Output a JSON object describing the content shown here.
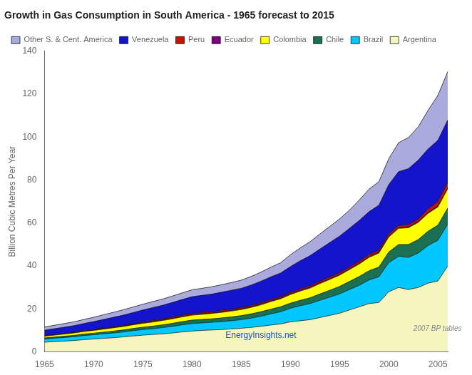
{
  "chart_data": {
    "type": "area",
    "stacked": true,
    "title": "Growth in Gas Consumption in South America - 1965 forecast to 2015",
    "ylabel": "Billion Cubic Metres Per Year",
    "x": [
      1965,
      1966,
      1967,
      1968,
      1969,
      1970,
      1971,
      1972,
      1973,
      1974,
      1975,
      1976,
      1977,
      1978,
      1979,
      1980,
      1981,
      1982,
      1983,
      1984,
      1985,
      1986,
      1987,
      1988,
      1989,
      1990,
      1991,
      1992,
      1993,
      1994,
      1995,
      1996,
      1997,
      1998,
      1999,
      2000,
      2001,
      2002,
      2003,
      2004,
      2005,
      2006
    ],
    "xlim": [
      1965,
      2006
    ],
    "xticks": [
      1965,
      1970,
      1975,
      1980,
      1985,
      1990,
      1995,
      2000,
      2005
    ],
    "ylim": [
      0,
      140
    ],
    "yticks": [
      0,
      20,
      40,
      60,
      80,
      100,
      120,
      140
    ],
    "grid": false,
    "legend": "upper left",
    "series": [
      {
        "name": "Argentina",
        "color": "#F5F5C0",
        "values": [
          4.5,
          4.8,
          5.0,
          5.3,
          5.7,
          6.0,
          6.3,
          6.6,
          7.0,
          7.4,
          7.8,
          8.1,
          8.4,
          8.8,
          9.3,
          9.7,
          10.0,
          10.2,
          10.4,
          10.7,
          11.0,
          11.4,
          11.9,
          12.5,
          13.0,
          14.0,
          14.5,
          15.0,
          16.0,
          17.0,
          18.0,
          19.5,
          21.0,
          22.5,
          23.0,
          28.0,
          30.0,
          29.0,
          30.0,
          32.0,
          33.0,
          40.0
        ]
      },
      {
        "name": "Brazil",
        "color": "#00C8FF",
        "values": [
          1.5,
          1.6,
          1.7,
          1.8,
          1.9,
          2.0,
          2.1,
          2.2,
          2.3,
          2.5,
          2.6,
          2.7,
          2.9,
          3.1,
          3.3,
          3.5,
          3.5,
          3.6,
          3.7,
          3.8,
          4.0,
          4.3,
          4.7,
          5.2,
          5.7,
          6.3,
          7.0,
          7.5,
          8.0,
          8.5,
          9.0,
          9.5,
          10.0,
          11.0,
          12.0,
          13.5,
          14.5,
          15.0,
          16.0,
          17.5,
          19.0,
          19.5
        ]
      },
      {
        "name": "Chile",
        "color": "#1A7050",
        "values": [
          0.5,
          0.5,
          0.6,
          0.6,
          0.7,
          0.7,
          0.8,
          0.9,
          0.9,
          1.0,
          1.1,
          1.2,
          1.3,
          1.4,
          1.5,
          1.6,
          1.6,
          1.6,
          1.7,
          1.8,
          1.9,
          2.0,
          2.1,
          2.2,
          2.3,
          2.4,
          2.5,
          2.7,
          3.0,
          3.2,
          3.5,
          3.8,
          4.1,
          4.3,
          4.5,
          5.0,
          5.5,
          6.0,
          6.3,
          6.7,
          7.0,
          7.5
        ]
      },
      {
        "name": "Colombia",
        "color": "#FFFF00",
        "values": [
          0.8,
          0.9,
          1.0,
          1.1,
          1.2,
          1.3,
          1.4,
          1.5,
          1.6,
          1.7,
          1.8,
          1.9,
          2.0,
          2.1,
          2.2,
          2.3,
          2.4,
          2.5,
          2.6,
          2.7,
          2.8,
          3.0,
          3.2,
          3.5,
          3.7,
          4.0,
          4.3,
          4.5,
          4.8,
          5.0,
          5.2,
          5.5,
          5.8,
          6.2,
          6.5,
          7.0,
          7.5,
          7.8,
          8.0,
          8.3,
          8.5,
          9.0
        ]
      },
      {
        "name": "Ecuador",
        "color": "#7B0080",
        "values": [
          0.1,
          0.1,
          0.1,
          0.1,
          0.1,
          0.1,
          0.2,
          0.2,
          0.2,
          0.2,
          0.2,
          0.3,
          0.3,
          0.3,
          0.3,
          0.3,
          0.3,
          0.3,
          0.4,
          0.4,
          0.4,
          0.4,
          0.5,
          0.5,
          0.5,
          0.5,
          0.5,
          0.5,
          0.5,
          0.5,
          0.5,
          0.5,
          0.5,
          0.5,
          0.5,
          0.5,
          0.5,
          0.5,
          0.5,
          0.5,
          0.5,
          0.5
        ]
      },
      {
        "name": "Peru",
        "color": "#CC1100",
        "values": [
          0.2,
          0.2,
          0.2,
          0.2,
          0.2,
          0.3,
          0.3,
          0.3,
          0.3,
          0.3,
          0.4,
          0.4,
          0.4,
          0.5,
          0.5,
          0.5,
          0.5,
          0.5,
          0.5,
          0.5,
          0.5,
          0.5,
          0.5,
          0.5,
          0.5,
          0.5,
          0.6,
          0.6,
          0.6,
          0.7,
          0.7,
          0.7,
          0.8,
          0.8,
          0.8,
          0.9,
          0.9,
          1.0,
          1.0,
          1.5,
          2.0,
          2.5
        ]
      },
      {
        "name": "Venezuela",
        "color": "#1414CC",
        "values": [
          2.5,
          2.7,
          2.9,
          3.1,
          3.4,
          3.7,
          4.0,
          4.4,
          4.8,
          5.2,
          5.6,
          6.0,
          6.4,
          6.8,
          7.3,
          7.8,
          8.0,
          8.2,
          8.5,
          8.8,
          9.0,
          9.5,
          10.0,
          10.5,
          11.0,
          12.0,
          13.0,
          14.0,
          15.0,
          16.0,
          17.0,
          18.0,
          19.0,
          20.0,
          21.0,
          23.0,
          25.0,
          26.0,
          27.5,
          28.0,
          28.5,
          29.0
        ]
      },
      {
        "name": "Other S. & Cent. America",
        "color": "#AAAADD",
        "values": [
          1.5,
          1.6,
          1.7,
          1.8,
          1.9,
          2.0,
          2.2,
          2.3,
          2.5,
          2.6,
          2.7,
          2.8,
          2.9,
          3.0,
          3.1,
          3.2,
          3.3,
          3.4,
          3.5,
          3.6,
          3.8,
          4.0,
          4.2,
          4.5,
          4.8,
          5.5,
          6.0,
          6.5,
          7.0,
          7.5,
          8.0,
          8.5,
          9.5,
          10.5,
          11.0,
          12.0,
          13.5,
          14.5,
          15.5,
          18.0,
          21.0,
          22.5
        ]
      }
    ],
    "annotations": [
      {
        "text": "EnergyInsights.net",
        "x": 1987,
        "y": 5.5,
        "color": "#2255AA"
      },
      {
        "text": "2007 BP tables",
        "x": 2002.5,
        "y": 9,
        "color": "#888888"
      }
    ]
  }
}
